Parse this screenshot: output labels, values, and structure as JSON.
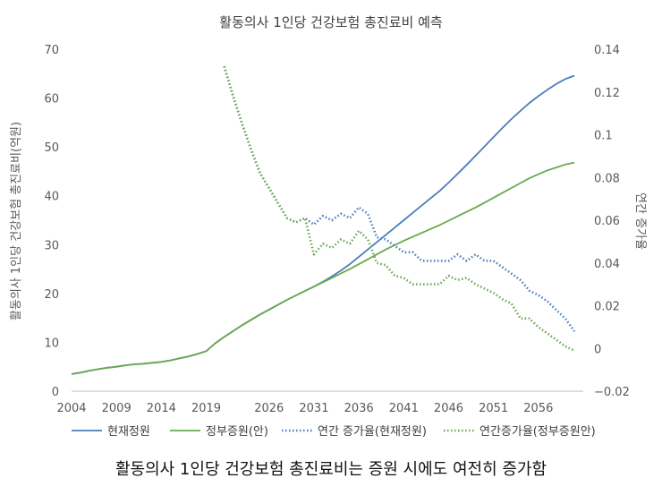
{
  "chart_data": {
    "type": "line",
    "title": "활동의사 1인당 건강보험 총진료비 예측",
    "ylabel": "활동의사 1인당 건강보험 총진료비(억원)",
    "y2label": "연간 증가율",
    "ylim": [
      0,
      70
    ],
    "y2lim": [
      -0.02,
      0.14
    ],
    "yticks": [
      "0",
      "10",
      "20",
      "30",
      "40",
      "50",
      "60",
      "70"
    ],
    "y2ticks": [
      "−0.02",
      "0",
      "0.02",
      "0.04",
      "0.06",
      "0.08",
      "0.1",
      "0.12",
      "0.14"
    ],
    "xlim": [
      2004,
      2061
    ],
    "xticks": [
      "2004",
      "2009",
      "2014",
      "2019",
      "2026",
      "2031",
      "2036",
      "2041",
      "2046",
      "2051",
      "2056"
    ],
    "grid": false,
    "legend": "bottom",
    "colors": {
      "current": "#4a7ebb",
      "gov": "#6aa84f"
    },
    "series": [
      {
        "name": "현재정원",
        "axis": "left",
        "style": "solid",
        "x": [
          2004,
          2005,
          2006,
          2007,
          2008,
          2009,
          2010,
          2011,
          2012,
          2013,
          2014,
          2015,
          2016,
          2017,
          2018,
          2019,
          2020,
          2021,
          2022,
          2023,
          2024,
          2025,
          2026,
          2027,
          2028,
          2029,
          2030,
          2031,
          2032,
          2033,
          2034,
          2035,
          2036,
          2037,
          2038,
          2039,
          2040,
          2041,
          2042,
          2043,
          2044,
          2045,
          2046,
          2047,
          2048,
          2049,
          2050,
          2051,
          2052,
          2053,
          2054,
          2055,
          2056,
          2057,
          2058,
          2059,
          2060
        ],
        "y": [
          3.5,
          3.8,
          4.2,
          4.5,
          4.8,
          5.0,
          5.3,
          5.5,
          5.6,
          5.8,
          6.0,
          6.3,
          6.7,
          7.1,
          7.6,
          8.2,
          9.8,
          11.1,
          12.3,
          13.5,
          14.6,
          15.7,
          16.7,
          17.7,
          18.7,
          19.6,
          20.5,
          21.4,
          22.4,
          23.5,
          24.7,
          26.0,
          27.5,
          29.0,
          30.5,
          32.0,
          33.5,
          35.0,
          36.5,
          38.0,
          39.5,
          41.0,
          42.7,
          44.5,
          46.3,
          48.2,
          50.1,
          52.0,
          53.9,
          55.7,
          57.4,
          59.0,
          60.4,
          61.7,
          62.9,
          63.9,
          64.6
        ]
      },
      {
        "name": "정부증원(안)",
        "axis": "left",
        "style": "solid",
        "x": [
          2004,
          2005,
          2006,
          2007,
          2008,
          2009,
          2010,
          2011,
          2012,
          2013,
          2014,
          2015,
          2016,
          2017,
          2018,
          2019,
          2020,
          2021,
          2022,
          2023,
          2024,
          2025,
          2026,
          2027,
          2028,
          2029,
          2030,
          2031,
          2032,
          2033,
          2034,
          2035,
          2036,
          2037,
          2038,
          2039,
          2040,
          2041,
          2042,
          2043,
          2044,
          2045,
          2046,
          2047,
          2048,
          2049,
          2050,
          2051,
          2052,
          2053,
          2054,
          2055,
          2056,
          2057,
          2058,
          2059,
          2060
        ],
        "y": [
          3.5,
          3.8,
          4.2,
          4.5,
          4.8,
          5.0,
          5.3,
          5.5,
          5.6,
          5.8,
          6.0,
          6.3,
          6.7,
          7.1,
          7.6,
          8.2,
          9.8,
          11.1,
          12.3,
          13.5,
          14.6,
          15.7,
          16.7,
          17.7,
          18.7,
          19.6,
          20.5,
          21.4,
          22.3,
          23.2,
          24.1,
          25.0,
          26.0,
          27.0,
          28.0,
          29.0,
          29.9,
          30.8,
          31.6,
          32.4,
          33.2,
          34.0,
          34.9,
          35.8,
          36.7,
          37.6,
          38.6,
          39.6,
          40.6,
          41.6,
          42.6,
          43.6,
          44.4,
          45.2,
          45.8,
          46.4,
          46.8
        ]
      },
      {
        "name": "연간 증가율(현재정원)",
        "axis": "right",
        "style": "dotted",
        "x": [
          2021,
          2022,
          2023,
          2024,
          2025,
          2026,
          2027,
          2028,
          2029,
          2030,
          2031,
          2032,
          2033,
          2034,
          2035,
          2036,
          2037,
          2038,
          2039,
          2040,
          2041,
          2042,
          2043,
          2044,
          2045,
          2046,
          2047,
          2048,
          2049,
          2050,
          2051,
          2052,
          2053,
          2054,
          2055,
          2056,
          2057,
          2058,
          2059,
          2060
        ],
        "y": [
          0.132,
          0.118,
          0.105,
          0.093,
          0.082,
          0.075,
          0.068,
          0.061,
          0.059,
          0.061,
          0.058,
          0.062,
          0.06,
          0.063,
          0.061,
          0.066,
          0.063,
          0.052,
          0.051,
          0.048,
          0.045,
          0.045,
          0.041,
          0.041,
          0.041,
          0.041,
          0.044,
          0.041,
          0.044,
          0.041,
          0.041,
          0.038,
          0.035,
          0.032,
          0.027,
          0.025,
          0.022,
          0.018,
          0.014,
          0.008
        ]
      },
      {
        "name": "연간증가율(정부증원안)",
        "axis": "right",
        "style": "dotted",
        "x": [
          2021,
          2022,
          2023,
          2024,
          2025,
          2026,
          2027,
          2028,
          2029,
          2030,
          2031,
          2032,
          2033,
          2034,
          2035,
          2036,
          2037,
          2038,
          2039,
          2040,
          2041,
          2042,
          2043,
          2044,
          2045,
          2046,
          2047,
          2048,
          2049,
          2050,
          2051,
          2052,
          2053,
          2054,
          2055,
          2056,
          2057,
          2058,
          2059,
          2060
        ],
        "y": [
          0.132,
          0.118,
          0.105,
          0.093,
          0.082,
          0.075,
          0.068,
          0.061,
          0.059,
          0.061,
          0.044,
          0.049,
          0.047,
          0.051,
          0.049,
          0.055,
          0.051,
          0.04,
          0.039,
          0.034,
          0.033,
          0.03,
          0.03,
          0.03,
          0.03,
          0.034,
          0.032,
          0.033,
          0.03,
          0.028,
          0.026,
          0.023,
          0.021,
          0.014,
          0.014,
          0.01,
          0.007,
          0.004,
          0.001,
          -0.001
        ]
      }
    ]
  },
  "caption": "활동의사 1인당 건강보험 총진료비는 증원 시에도 여전히 증가함"
}
